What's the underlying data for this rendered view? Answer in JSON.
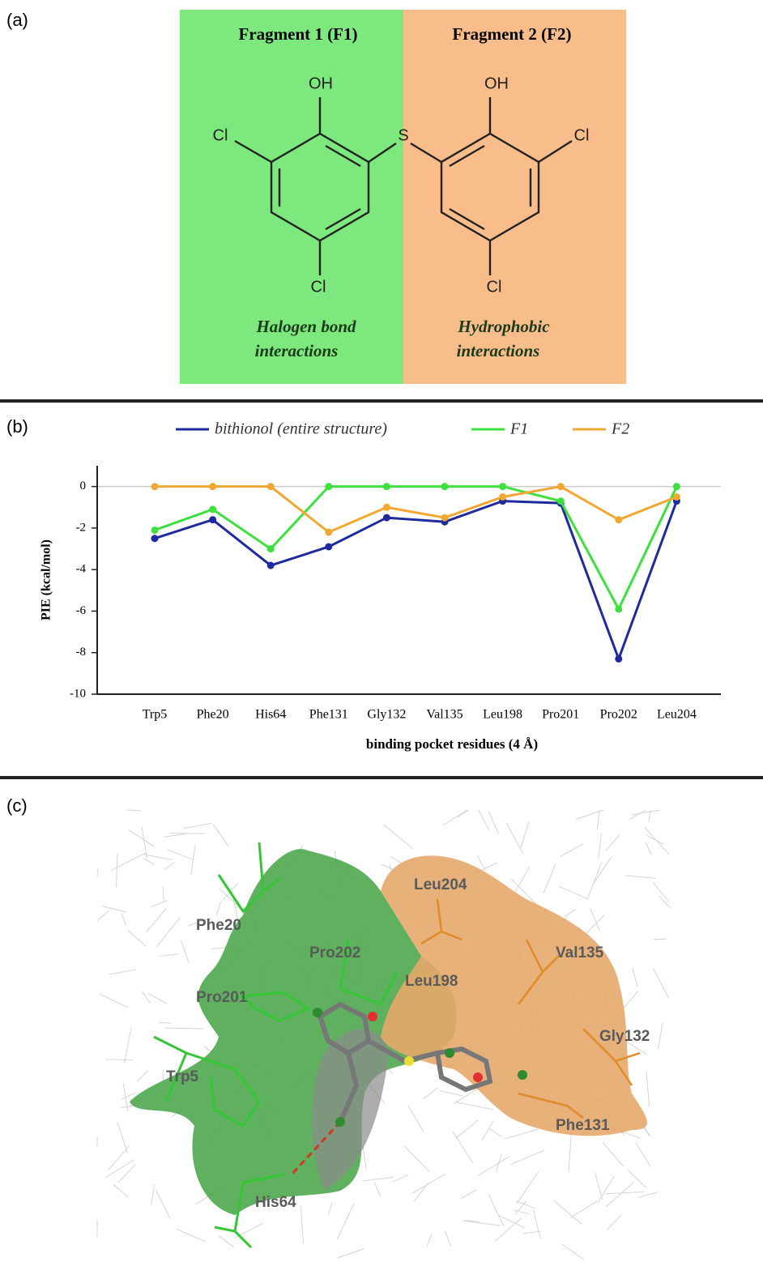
{
  "panel_a": {
    "label": "(a)",
    "fragment1": "Fragment 1 (F1)",
    "fragment2": "Fragment 2 (F2)",
    "atoms": [
      "OH",
      "Cl",
      "Cl",
      "S",
      "OH",
      "Cl",
      "Cl"
    ],
    "note1": [
      "Halogen bond",
      "interactions"
    ],
    "note2": [
      "Hydrophobic",
      "interactions"
    ]
  },
  "chart_data": {
    "type": "line",
    "panel_label": "(b)",
    "x_label": "binding pocket residues (4 Å)",
    "y_label": "PIE (kcal/mol)",
    "categories": [
      "Trp5",
      "Phe20",
      "His64",
      "Phe131",
      "Gly132",
      "Val135",
      "Leu198",
      "Pro201",
      "Pro202",
      "Leu204"
    ],
    "series": [
      {
        "name": "bithionol (entire structure)",
        "color": "#1f2a9e",
        "values": [
          -2.5,
          -1.6,
          -3.8,
          -2.9,
          -1.5,
          -1.7,
          -0.7,
          -0.8,
          -8.3,
          -0.7
        ]
      },
      {
        "name": "F1",
        "color": "#3ee03e",
        "values": [
          -2.1,
          -1.1,
          -3.0,
          0,
          0,
          0,
          0,
          -0.7,
          -5.9,
          0
        ]
      },
      {
        "name": "F2",
        "color": "#f0a832",
        "values": [
          0,
          0,
          0,
          -2.2,
          -1.0,
          -1.5,
          -0.5,
          0,
          -1.6,
          -0.5
        ]
      }
    ],
    "ylim": [
      -10,
      1
    ],
    "yticks": [
      -10,
      -8,
      -6,
      -4,
      -2,
      0
    ],
    "reference_line": 0,
    "legend": "top"
  },
  "panel_c": {
    "label": "(c)",
    "residues": [
      "Phe20",
      "Pro202",
      "Leu204",
      "Val135",
      "Pro201",
      "Leu198",
      "Gly132",
      "Trp5",
      "Phe131",
      "His64"
    ]
  }
}
